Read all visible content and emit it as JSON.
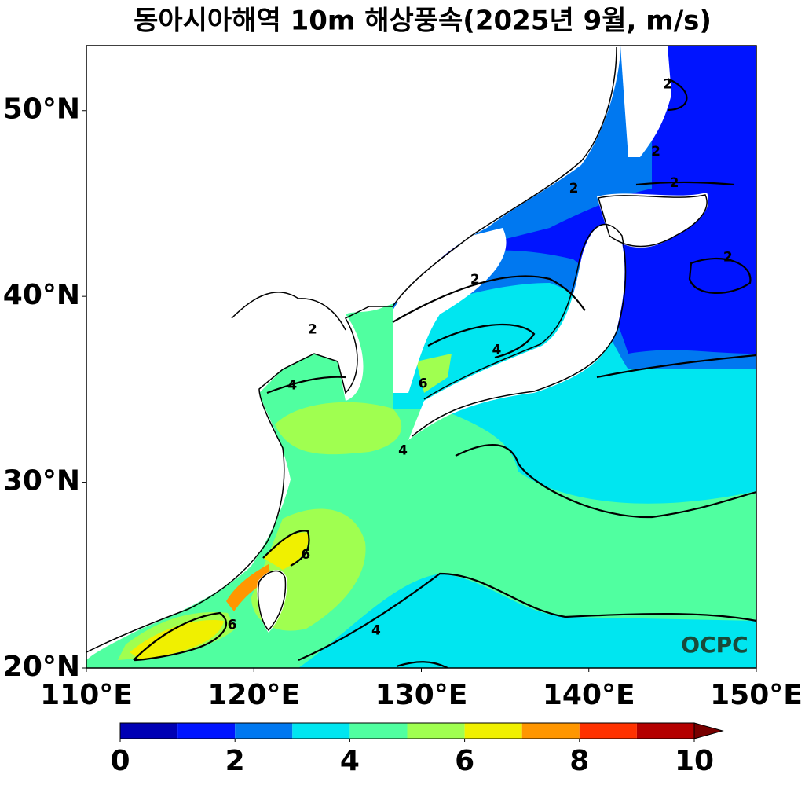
{
  "chart_data": {
    "type": "contour-map",
    "title": "동아시아해역 10m 해상풍속(2025년 9월, m/s)",
    "xlim": [
      110,
      150
    ],
    "ylim": [
      20,
      53.5
    ],
    "xticks": [
      {
        "value": 110,
        "label": "110°E"
      },
      {
        "value": 120,
        "label": "120°E"
      },
      {
        "value": 130,
        "label": "130°E"
      },
      {
        "value": 140,
        "label": "140°E"
      },
      {
        "value": 150,
        "label": "150°E"
      }
    ],
    "yticks": [
      {
        "value": 20,
        "label": "20°N"
      },
      {
        "value": 30,
        "label": "30°N"
      },
      {
        "value": 40,
        "label": "40°N"
      },
      {
        "value": 50,
        "label": "50°N"
      }
    ],
    "colorbar": {
      "levels": [
        0,
        1,
        2,
        3,
        4,
        5,
        6,
        7,
        8,
        9,
        10
      ],
      "colors": [
        "#0000b4",
        "#0014ff",
        "#0078f0",
        "#00e6f0",
        "#50ffa0",
        "#a0ff50",
        "#f0f000",
        "#ff9600",
        "#ff3200",
        "#b40000"
      ],
      "extend": "max",
      "extend_color": "#780000",
      "ticks": [
        0,
        2,
        4,
        6,
        8,
        10
      ]
    },
    "contour_labels": [
      {
        "value": 2,
        "lon": 123.5,
        "lat": 38.2
      },
      {
        "value": 2,
        "lon": 133.2,
        "lat": 40.9
      },
      {
        "value": 4,
        "lon": 134.5,
        "lat": 37.1
      },
      {
        "value": 4,
        "lon": 122.3,
        "lat": 35.2
      },
      {
        "value": 6,
        "lon": 130.1,
        "lat": 35.3
      },
      {
        "value": 4,
        "lon": 128.9,
        "lat": 31.7
      },
      {
        "value": 6,
        "lon": 123.1,
        "lat": 26.1
      },
      {
        "value": 6,
        "lon": 118.7,
        "lat": 22.3
      },
      {
        "value": 4,
        "lon": 127.3,
        "lat": 22.0
      },
      {
        "value": 2,
        "lon": 144.7,
        "lat": 51.4
      },
      {
        "value": 2,
        "lon": 144.0,
        "lat": 47.8
      },
      {
        "value": 2,
        "lon": 145.1,
        "lat": 46.1
      },
      {
        "value": 2,
        "lon": 139.1,
        "lat": 45.8
      },
      {
        "value": 2,
        "lon": 148.3,
        "lat": 42.1
      }
    ],
    "logo": "OCPC"
  }
}
